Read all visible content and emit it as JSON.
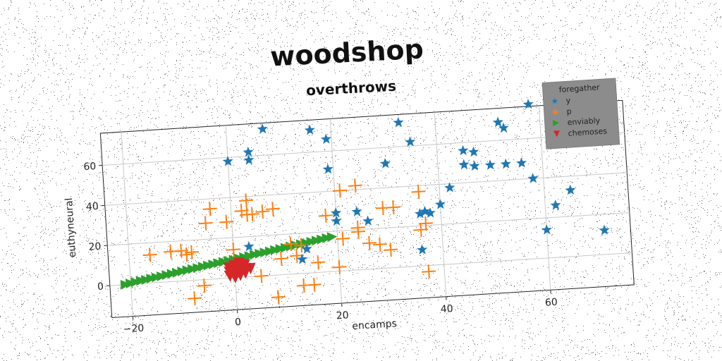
{
  "chart_data": {
    "type": "scatter",
    "title": "woodshop",
    "subtitle": "overthrows",
    "xlabel": "encamps",
    "ylabel": "euthyneural",
    "xlim": [
      -24,
      76
    ],
    "ylim": [
      -16,
      76
    ],
    "xticks": [
      -20,
      0,
      20,
      40,
      60
    ],
    "yticks": [
      0,
      20,
      40,
      60
    ],
    "xtick_labels": [
      "−20",
      "0",
      "20",
      "40",
      "60"
    ],
    "ytick_labels": [
      "0",
      "20",
      "40",
      "60"
    ],
    "grid": true,
    "legend": {
      "title": "foregather",
      "placement": "top-right"
    },
    "series": [
      {
        "name": "y",
        "marker": "star",
        "color": "#1f77b4",
        "points": [
          [
            0,
            58
          ],
          [
            4,
            58
          ],
          [
            4,
            62
          ],
          [
            7,
            73
          ],
          [
            16,
            71
          ],
          [
            19,
            66
          ],
          [
            19,
            51
          ],
          [
            30,
            52
          ],
          [
            33,
            72
          ],
          [
            35,
            62
          ],
          [
            45,
            56
          ],
          [
            47,
            55
          ],
          [
            45,
            49
          ],
          [
            47,
            48
          ],
          [
            50,
            48
          ],
          [
            53,
            48
          ],
          [
            56,
            48
          ],
          [
            52,
            69
          ],
          [
            53,
            66
          ],
          [
            58,
            77
          ],
          [
            58,
            40
          ],
          [
            62,
            26
          ],
          [
            65,
            33
          ],
          [
            60,
            14
          ],
          [
            71,
            12
          ],
          [
            36,
            26
          ],
          [
            37,
            27
          ],
          [
            38,
            26
          ],
          [
            40,
            30
          ],
          [
            42,
            38
          ],
          [
            36,
            8
          ],
          [
            20,
            29
          ],
          [
            24,
            29
          ],
          [
            26,
            24
          ],
          [
            20,
            25
          ],
          [
            13,
            7
          ],
          [
            14,
            12
          ],
          [
            3,
            15
          ]
        ]
      },
      {
        "name": "p",
        "marker": "plus",
        "color": "#ff7f0e",
        "points": [
          [
            -16,
            14
          ],
          [
            -12,
            15
          ],
          [
            -10,
            15
          ],
          [
            -8,
            14
          ],
          [
            -9,
            13
          ],
          [
            -5,
            28
          ],
          [
            -4,
            35
          ],
          [
            -1,
            28
          ],
          [
            2,
            33
          ],
          [
            3,
            38
          ],
          [
            3,
            31
          ],
          [
            4,
            31
          ],
          [
            6,
            32
          ],
          [
            8,
            33
          ],
          [
            8,
            -11
          ],
          [
            -6,
            -3
          ],
          [
            -8,
            -9
          ],
          [
            5,
            0
          ],
          [
            9,
            8
          ],
          [
            12,
            9
          ],
          [
            13,
            -6
          ],
          [
            15,
            -6
          ],
          [
            16,
            5
          ],
          [
            20,
            2
          ],
          [
            18,
            28
          ],
          [
            21,
            40
          ],
          [
            24,
            42
          ],
          [
            21,
            16
          ],
          [
            24,
            19
          ],
          [
            24,
            21
          ],
          [
            26,
            13
          ],
          [
            28,
            12
          ],
          [
            30,
            9
          ],
          [
            29,
            30
          ],
          [
            31,
            30
          ],
          [
            36,
            37
          ],
          [
            36,
            18
          ],
          [
            37,
            21
          ],
          [
            37,
            -3
          ],
          [
            11,
            15
          ],
          [
            13,
            14
          ],
          [
            0,
            14
          ]
        ]
      },
      {
        "name": "enviably",
        "marker": "triangle-right",
        "color": "#2ca02c",
        "points": [
          [
            -21,
            0
          ],
          [
            -20,
            0.5
          ],
          [
            -19,
            1
          ],
          [
            -18,
            1.5
          ],
          [
            -17,
            1.8
          ],
          [
            -16,
            2.3
          ],
          [
            -15,
            2.7
          ],
          [
            -14,
            3.1
          ],
          [
            -13,
            3.6
          ],
          [
            -12,
            4
          ],
          [
            -11,
            4.4
          ],
          [
            -10,
            4.9
          ],
          [
            -9,
            5.3
          ],
          [
            -8,
            5.7
          ],
          [
            -7,
            6.1
          ],
          [
            -6,
            6.6
          ],
          [
            -5,
            7
          ],
          [
            -4,
            7.4
          ],
          [
            -3,
            7.9
          ],
          [
            -2,
            8.3
          ],
          [
            -1,
            8.7
          ],
          [
            0,
            9.1
          ],
          [
            1,
            9.6
          ],
          [
            2,
            10
          ],
          [
            3,
            10.4
          ],
          [
            4,
            10.9
          ],
          [
            5,
            11.3
          ],
          [
            6,
            11.7
          ],
          [
            7,
            12.1
          ],
          [
            8,
            12.6
          ],
          [
            9,
            13
          ],
          [
            10,
            13.4
          ],
          [
            11,
            13.9
          ],
          [
            12,
            14.3
          ],
          [
            13,
            14.7
          ],
          [
            14,
            15.1
          ],
          [
            15,
            15.6
          ],
          [
            16,
            16
          ],
          [
            17,
            16.4
          ],
          [
            18,
            16.9
          ],
          [
            19,
            17.3
          ]
        ]
      },
      {
        "name": "chemoses",
        "marker": "triangle-down",
        "color": "#d62728",
        "points": [
          [
            -1,
            5
          ],
          [
            0,
            4
          ],
          [
            1,
            5
          ],
          [
            2,
            4
          ],
          [
            -1,
            3
          ],
          [
            0,
            2
          ],
          [
            1,
            3
          ],
          [
            2,
            2
          ],
          [
            3,
            4
          ],
          [
            0,
            6
          ],
          [
            1,
            7
          ],
          [
            2,
            6
          ],
          [
            -1,
            1
          ],
          [
            1,
            1
          ],
          [
            0,
            0
          ]
        ]
      }
    ]
  }
}
